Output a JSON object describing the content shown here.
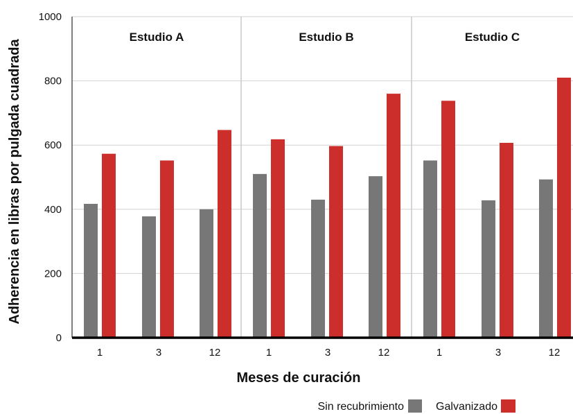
{
  "chart_data": {
    "type": "bar",
    "ylabel": "Adherencia en libras por pulgada cuadrada",
    "xlabel": "Meses de curación",
    "ylim": [
      0,
      1000
    ],
    "yticks": [
      0,
      200,
      400,
      600,
      800,
      1000
    ],
    "grid": true,
    "legend_position": "bottom-right",
    "categories": [
      "1",
      "3",
      "12"
    ],
    "panels": [
      {
        "title": "Estudio A",
        "series": [
          {
            "name": "Sin recubrimiento",
            "values": [
              417,
              378,
              400
            ]
          },
          {
            "name": "Galvanizado",
            "values": [
              573,
              552,
              647
            ]
          }
        ]
      },
      {
        "title": "Estudio B",
        "series": [
          {
            "name": "Sin recubrimiento",
            "values": [
              510,
              430,
              503
            ]
          },
          {
            "name": "Galvanizado",
            "values": [
              618,
              597,
              760
            ]
          }
        ]
      },
      {
        "title": "Estudio C",
        "series": [
          {
            "name": "Sin recubrimiento",
            "values": [
              552,
              428,
              493
            ]
          },
          {
            "name": "Galvanizado",
            "values": [
              738,
              607,
              810
            ]
          }
        ]
      }
    ],
    "legend": [
      {
        "name": "Sin recubrimiento",
        "color": "#777777"
      },
      {
        "name": "Galvanizado",
        "color": "#cc2e2b"
      }
    ],
    "colors": {
      "Sin recubrimiento": "#777777",
      "Galvanizado": "#cc2e2b"
    }
  }
}
